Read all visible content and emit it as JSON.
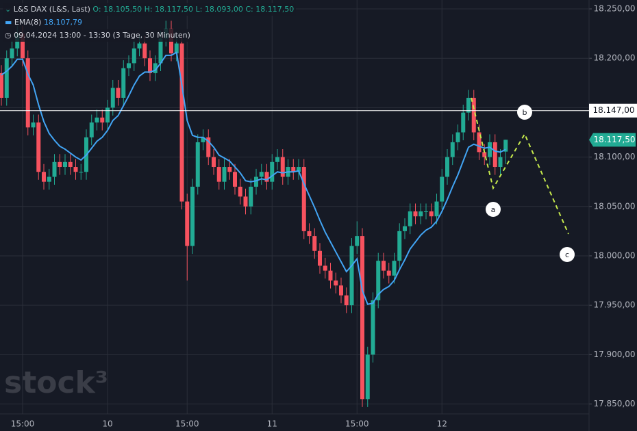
{
  "chart_data": {
    "type": "candlestick",
    "header": {
      "symbol": "L&S DAX (L&S, Last)",
      "ohlc": "O: 18.105,50  H: 18.117,50  L: 18.093,00  C: 18.117,50",
      "interval": "09.04.2024 13:00 - 13:30",
      "span": "(3 Tage, 30 Minuten)"
    },
    "watermark": "stock³",
    "up_color": "#22ab94",
    "down_color": "#f7525f",
    "categories": [
      null,
      null,
      null,
      null,
      "15:00",
      null,
      null,
      null,
      null,
      null,
      null,
      null,
      null,
      null,
      null,
      null,
      null,
      null,
      null,
      null,
      "10",
      null,
      null,
      null,
      null,
      null,
      null,
      null,
      null,
      null,
      null,
      null,
      null,
      null,
      null,
      "15:00",
      null,
      null,
      null,
      null,
      null,
      null,
      null,
      null,
      null,
      null,
      null,
      null,
      null,
      null,
      null,
      "11",
      null,
      null,
      null,
      null,
      null,
      null,
      null,
      null,
      null,
      null,
      null,
      null,
      null,
      null,
      null,
      "15:00",
      null,
      null,
      null,
      null,
      null,
      null,
      null,
      null,
      null,
      null,
      null,
      null,
      null,
      null,
      null,
      "12",
      null,
      null,
      null,
      null,
      null,
      null,
      null,
      null,
      null,
      null,
      null,
      null
    ],
    "open": [
      18185,
      18160,
      18200,
      18210,
      18225,
      18200,
      18130,
      18135,
      18085,
      18075,
      18080,
      18095,
      18090,
      18095,
      18090,
      18085,
      18085,
      18120,
      18135,
      18140,
      18135,
      18150,
      18170,
      18160,
      18190,
      18195,
      18210,
      18215,
      18200,
      18185,
      18195,
      18220,
      18230,
      18205,
      18215,
      18055,
      18010,
      18070,
      18115,
      18120,
      18100,
      18090,
      18075,
      18090,
      18085,
      18070,
      18060,
      18050,
      18070,
      18080,
      18085,
      18075,
      18095,
      18100,
      18080,
      18090,
      18085,
      18090,
      18025,
      18020,
      18005,
      17990,
      17985,
      17975,
      17970,
      17960,
      17950,
      18010,
      18020,
      17855,
      17900,
      17955,
      17995,
      17985,
      17980,
      17995,
      18025,
      18030,
      18045,
      18040,
      18045,
      18045,
      18040,
      18055,
      18080,
      18100,
      18115,
      18125,
      18145,
      18160,
      18125,
      18105,
      18100,
      18115,
      18090,
      18105.5
    ],
    "high": [
      18193,
      18208,
      18218,
      18233,
      18233,
      18208,
      18143,
      18143,
      18093,
      18088,
      18103,
      18103,
      18103,
      18103,
      18098,
      18093,
      18128,
      18143,
      18148,
      18148,
      18158,
      18178,
      18178,
      18198,
      18203,
      18218,
      18223,
      18223,
      18208,
      18203,
      18228,
      18238,
      18238,
      18223,
      18223,
      18063,
      18078,
      18123,
      18128,
      18128,
      18108,
      18098,
      18098,
      18098,
      18093,
      18078,
      18068,
      18078,
      18088,
      18093,
      18093,
      18103,
      18108,
      18108,
      18098,
      18098,
      18098,
      18098,
      18033,
      18028,
      18013,
      17998,
      17993,
      17983,
      17978,
      17968,
      18018,
      18035,
      18028,
      17908,
      17963,
      18003,
      18003,
      17993,
      18003,
      18033,
      18038,
      18053,
      18053,
      18053,
      18053,
      18053,
      18063,
      18088,
      18108,
      18123,
      18133,
      18153,
      18168,
      18168,
      18133,
      18113,
      18123,
      18123,
      18108,
      18117.5
    ],
    "low": [
      18152,
      18152,
      18192,
      18202,
      18192,
      18122,
      18122,
      18077,
      18067,
      18067,
      18072,
      18082,
      18082,
      18082,
      18077,
      18077,
      18077,
      18112,
      18127,
      18127,
      18127,
      18142,
      18152,
      18152,
      18182,
      18187,
      18202,
      18192,
      18177,
      18177,
      18187,
      18212,
      18197,
      18197,
      18047,
      17975,
      18002,
      18062,
      18107,
      18092,
      18082,
      18067,
      18067,
      18077,
      18062,
      18052,
      18042,
      18042,
      18062,
      18072,
      18067,
      18067,
      18087,
      18072,
      18072,
      18077,
      18077,
      18017,
      18012,
      17997,
      17982,
      17977,
      17967,
      17962,
      17952,
      17942,
      17942,
      18002,
      17847,
      17847,
      17892,
      17947,
      17977,
      17972,
      17972,
      17987,
      18017,
      18022,
      18032,
      18032,
      18037,
      18032,
      18032,
      18047,
      18072,
      18092,
      18107,
      18117,
      18137,
      18117,
      18097,
      18092,
      18092,
      18082,
      18082,
      18093
    ],
    "close": [
      18160,
      18200,
      18210,
      18225,
      18200,
      18130,
      18135,
      18085,
      18075,
      18080,
      18095,
      18090,
      18095,
      18090,
      18085,
      18085,
      18120,
      18135,
      18140,
      18135,
      18150,
      18170,
      18160,
      18190,
      18195,
      18210,
      18215,
      18200,
      18185,
      18195,
      18220,
      18230,
      18205,
      18215,
      18055,
      18010,
      18070,
      18115,
      18120,
      18100,
      18090,
      18075,
      18090,
      18085,
      18070,
      18060,
      18050,
      18070,
      18080,
      18085,
      18075,
      18095,
      18100,
      18080,
      18090,
      18085,
      18090,
      18025,
      18020,
      18005,
      17990,
      17985,
      17975,
      17970,
      17960,
      17950,
      18010,
      18020,
      17855,
      17900,
      17955,
      17995,
      17985,
      17980,
      17995,
      18025,
      18030,
      18045,
      18040,
      18045,
      18045,
      18040,
      18055,
      18080,
      18100,
      18115,
      18125,
      18145,
      18160,
      18125,
      18105,
      18100,
      18115,
      18090,
      18100,
      18117.5
    ],
    "ema": {
      "name": "EMA(8)",
      "color": "#42a5f5",
      "last_label": "18.107,79",
      "values": [
        18183,
        18187,
        18192,
        18199,
        18199,
        18184,
        18173,
        18153,
        18136,
        18124,
        18117,
        18111,
        18108,
        18104,
        18100,
        18097,
        18102,
        18109,
        18116,
        18120,
        18127,
        18137,
        18142,
        18152,
        18162,
        18173,
        18182,
        18186,
        18186,
        18188,
        18195,
        18203,
        18203,
        18206,
        18173,
        18137,
        18122,
        18120,
        18120,
        18116,
        18110,
        18102,
        18099,
        18096,
        18090,
        18084,
        18076,
        18075,
        18076,
        18078,
        18077,
        18081,
        18085,
        18084,
        18085,
        18085,
        18086,
        18073,
        18061,
        18049,
        18036,
        18024,
        18014,
        18004,
        17994,
        17984,
        17990,
        17997,
        17965,
        17951,
        17952,
        17961,
        17966,
        17969,
        17975,
        17986,
        17996,
        18007,
        18014,
        18021,
        18026,
        18029,
        18035,
        18045,
        18057,
        18070,
        18082,
        18096,
        18110,
        18113,
        18111,
        18109,
        18110,
        18106,
        18105,
        18107.79
      ]
    },
    "hline": {
      "value": 18147,
      "label": "18.147,00"
    },
    "last_price": {
      "value": 18117.5,
      "label": "18.117,50"
    },
    "annotations": [
      "a",
      "b",
      "c"
    ],
    "ylim": [
      17840,
      18259
    ],
    "yticks": [
      {
        "value": 17850,
        "label": "17.850,00"
      },
      {
        "value": 17900,
        "label": "17.900,00"
      },
      {
        "value": 17950,
        "label": "17.950,00"
      },
      {
        "value": 18000,
        "label": "18.000,00"
      },
      {
        "value": 18050,
        "label": "18.050,00"
      },
      {
        "value": 18100,
        "label": "18.100,00"
      },
      {
        "value": 18150,
        "label": "18.150,00"
      },
      {
        "value": 18200,
        "label": "18.200,00"
      },
      {
        "value": 18250,
        "label": "18.250,00"
      }
    ],
    "grid": true
  }
}
